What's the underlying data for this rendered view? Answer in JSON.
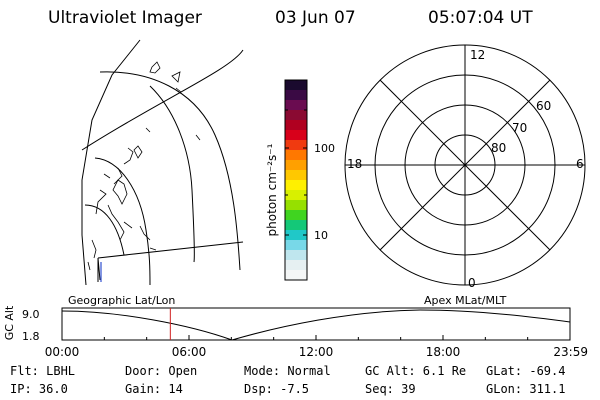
{
  "header": {
    "instrument": "Ultraviolet Imager",
    "date": "03 Jun 07",
    "time": "05:07:04 UT"
  },
  "colorbar": {
    "label": "photon cm⁻²s⁻¹",
    "tick_labels": [
      "100",
      "10"
    ],
    "colors": [
      "#1a0a2e",
      "#3a0a44",
      "#6a0c50",
      "#8a0a32",
      "#b00020",
      "#d8001a",
      "#f03a10",
      "#ff7800",
      "#ffa000",
      "#ffc800",
      "#fff000",
      "#d8f000",
      "#96e000",
      "#40d420",
      "#14c878",
      "#20c8c8",
      "#78d8e8",
      "#bfe6ee",
      "#e6f0f2",
      "#f4f6f6"
    ]
  },
  "map_label": "Geographic Lat/Lon",
  "polar": {
    "label": "Apex MLat/MLT",
    "mlt_labels": [
      "12",
      "18",
      "6",
      "0"
    ],
    "lat_labels": [
      "60",
      "70",
      "80"
    ]
  },
  "timeline": {
    "y_label": "GC Alt",
    "y_ticks": [
      "9.0",
      "1.8"
    ],
    "x_ticks": [
      "00:00",
      "06:00",
      "12:00",
      "18:00",
      "23:59"
    ],
    "current_hour": 5.118,
    "marker_color": "#d02020"
  },
  "info": {
    "row1": [
      "Flt: LBHL",
      "Door: Open",
      "Mode: Normal",
      "GC Alt: 6.1 Re",
      "GLat: -69.4"
    ],
    "row2": [
      "IP: 36.0",
      "Gain: 14",
      "Dsp:   -7.5",
      "Seq: 39",
      "GLon: 311.1"
    ]
  }
}
